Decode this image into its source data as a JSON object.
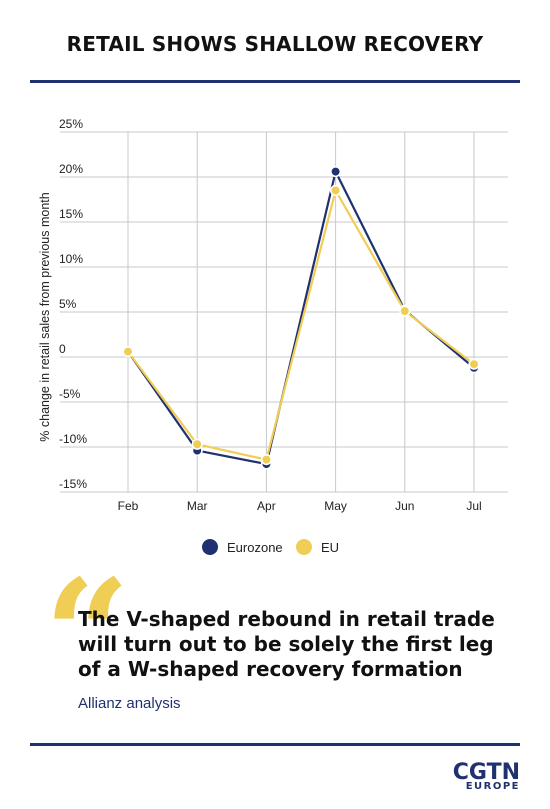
{
  "header": {
    "title": "RETAIL SHOWS SHALLOW RECOVERY"
  },
  "colors": {
    "rule": "#1f3170",
    "eurozone": "#1f3170",
    "eu": "#f0cd55",
    "quote_mark": "#f0cd55"
  },
  "chart_data": {
    "type": "line",
    "title": "",
    "xlabel": "",
    "ylabel": "% change in retail sales from previous month",
    "categories": [
      "Feb",
      "Mar",
      "Apr",
      "May",
      "Jun",
      "Jul"
    ],
    "ylim": [
      -15,
      25
    ],
    "yticks": [
      25,
      20,
      15,
      10,
      5,
      0,
      -5,
      -10,
      -15
    ],
    "ytick_labels": [
      "25%",
      "20%",
      "15%",
      "10%",
      "5%",
      "0",
      "-5%",
      "-10%",
      "-15%"
    ],
    "grid": true,
    "legend_position": "bottom",
    "series": [
      {
        "name": "Eurozone",
        "color": "#1f3170",
        "values": [
          0.6,
          -10.4,
          -11.9,
          20.6,
          5.2,
          -1.2
        ]
      },
      {
        "name": "EU",
        "color": "#f0cd55",
        "values": [
          0.6,
          -9.7,
          -11.4,
          18.5,
          5.1,
          -0.8
        ]
      }
    ]
  },
  "quote": {
    "mark": "“",
    "text": "The V-shaped rebound in retail trade will turn out to be solely the first leg of a W-shaped recovery formation",
    "source": "Allianz analysis"
  },
  "logo": {
    "main": "CGTN",
    "sub": "EUROPE"
  }
}
